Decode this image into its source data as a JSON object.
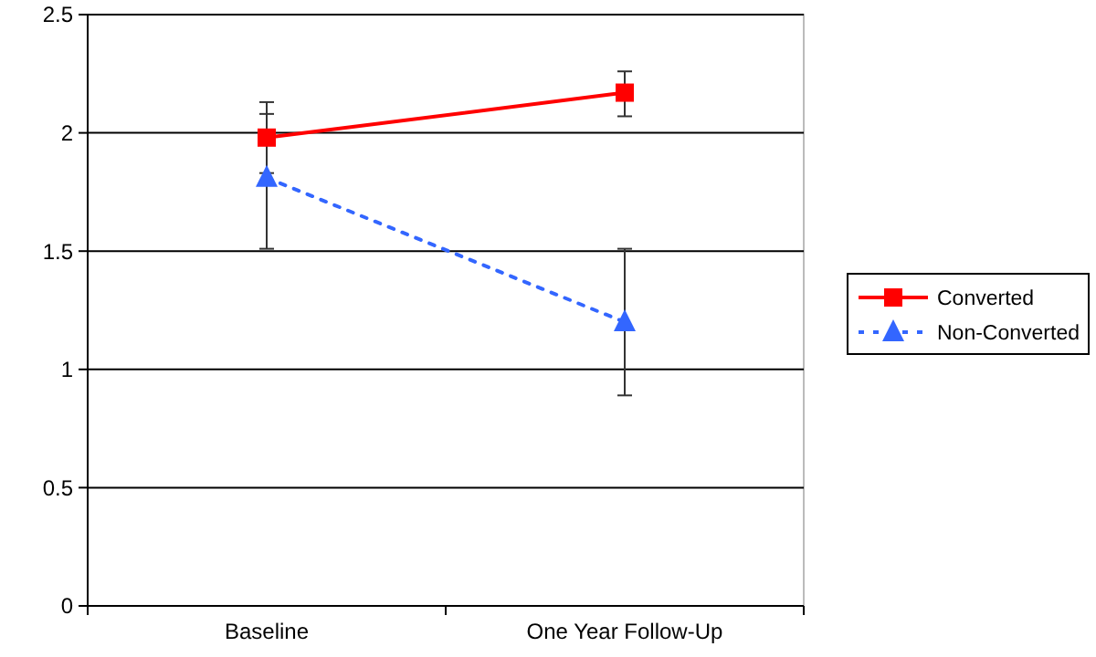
{
  "chart_data": {
    "type": "line",
    "categories": [
      "Baseline",
      "One Year Follow-Up"
    ],
    "series": [
      {
        "name": "Converted",
        "color": "#ff0000",
        "values": [
          1.98,
          2.17
        ],
        "errors": [
          [
            1.83,
            2.13
          ],
          [
            2.07,
            2.26
          ]
        ],
        "marker": "square",
        "line_style": "solid"
      },
      {
        "name": "Non-Converted",
        "color": "#3366ff",
        "values": [
          1.81,
          1.2
        ],
        "errors": [
          [
            1.51,
            2.08
          ],
          [
            0.89,
            1.51
          ]
        ],
        "marker": "triangle",
        "line_style": "dotted"
      }
    ],
    "ylim": [
      0,
      2.5
    ],
    "yticks": [
      0,
      0.5,
      1,
      1.5,
      2,
      2.5
    ],
    "grid": "y",
    "legend": "right"
  }
}
